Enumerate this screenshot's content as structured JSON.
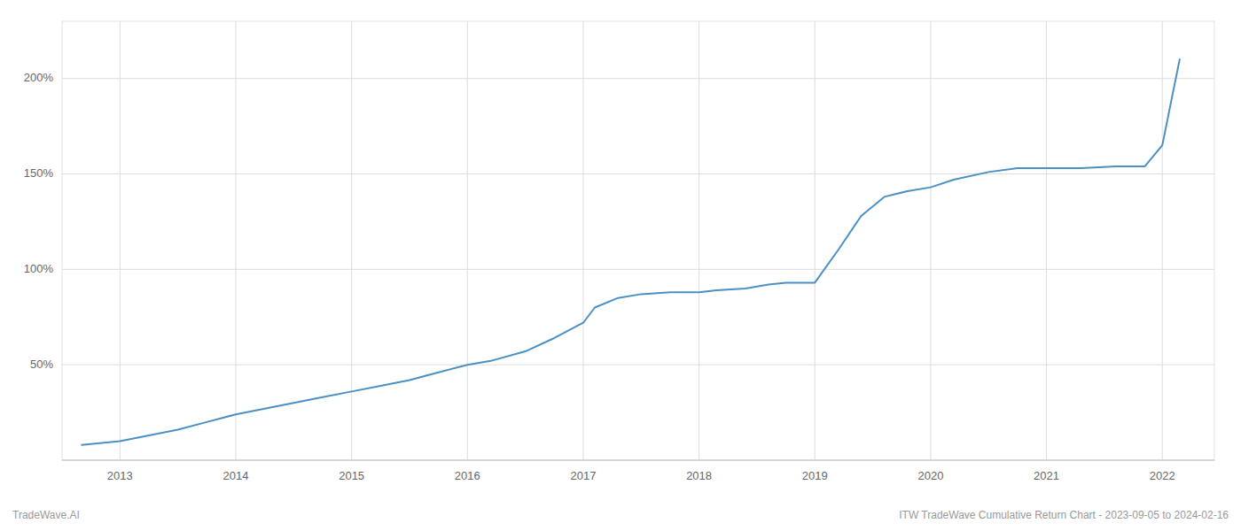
{
  "chart_data": {
    "type": "line",
    "x": [
      2012.67,
      2013.0,
      2013.25,
      2013.5,
      2013.75,
      2014.0,
      2014.25,
      2014.5,
      2014.75,
      2015.0,
      2015.25,
      2015.5,
      2015.75,
      2016.0,
      2016.2,
      2016.5,
      2016.75,
      2017.0,
      2017.1,
      2017.3,
      2017.5,
      2017.75,
      2018.0,
      2018.15,
      2018.4,
      2018.6,
      2018.75,
      2019.0,
      2019.2,
      2019.4,
      2019.6,
      2019.8,
      2020.0,
      2020.2,
      2020.5,
      2020.75,
      2021.0,
      2021.3,
      2021.6,
      2021.75,
      2021.85,
      2022.0,
      2022.15
    ],
    "values": [
      8,
      10,
      13,
      16,
      20,
      24,
      27,
      30,
      33,
      36,
      39,
      42,
      46,
      50,
      52,
      57,
      64,
      72,
      80,
      85,
      87,
      88,
      88,
      89,
      90,
      92,
      93,
      93,
      110,
      128,
      138,
      141,
      143,
      147,
      151,
      153,
      153,
      153,
      154,
      154,
      154,
      165,
      210
    ],
    "color": "#4a90c4",
    "xlim": [
      2012.5,
      2022.45
    ],
    "ylim": [
      0,
      230
    ],
    "xticks": [
      2013,
      2014,
      2015,
      2016,
      2017,
      2018,
      2019,
      2020,
      2021,
      2022
    ],
    "yticks": [
      {
        "value": 50,
        "label": "50%"
      },
      {
        "value": 100,
        "label": "100%"
      },
      {
        "value": 150,
        "label": "150%"
      },
      {
        "value": 200,
        "label": "200%"
      }
    ],
    "grid": true,
    "annotations": [
      "TradeWave.AI",
      "ITW TradeWave Cumulative Return Chart - 2023-09-05 to 2024-02-16"
    ]
  }
}
